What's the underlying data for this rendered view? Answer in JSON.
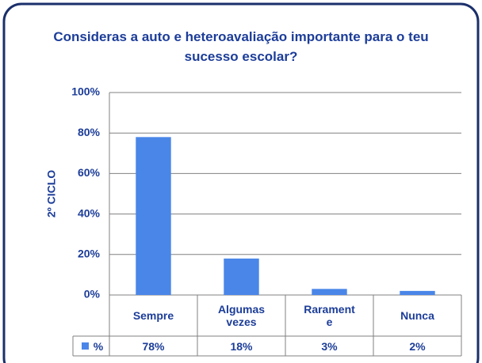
{
  "chart_data": {
    "type": "bar",
    "title": "Consideras a auto e heteroavaliação importante para o teu sucesso escolar?",
    "y_label": "2º CICLO",
    "categories": [
      "Sempre",
      "Algumas vezes",
      "Raramente",
      "Nunca"
    ],
    "series": [
      {
        "name": "%",
        "color": "#4a86e8",
        "values": [
          78,
          18,
          3,
          2
        ],
        "value_labels": [
          "78%",
          "18%",
          "3%",
          "2%"
        ]
      }
    ],
    "ylim": [
      0,
      100
    ],
    "yticks": [
      {
        "value": 0,
        "label": "0%"
      },
      {
        "value": 20,
        "label": "20%"
      },
      {
        "value": 40,
        "label": "40%"
      },
      {
        "value": 60,
        "label": "60%"
      },
      {
        "value": 80,
        "label": "80%"
      },
      {
        "value": 100,
        "label": "100%"
      }
    ],
    "grid": true,
    "data_table": true
  }
}
